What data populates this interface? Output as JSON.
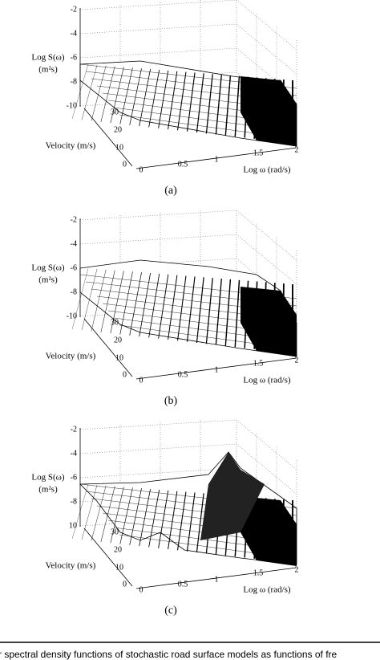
{
  "panels": [
    {
      "label": "(a)",
      "z_label": "Log S(ω)",
      "z_unit": "(m²s)",
      "z_ticks": [
        "-2",
        "-4",
        "-6",
        "-8",
        "-10"
      ],
      "v_label": "Velocity  (m/s)",
      "v_ticks": [
        "30",
        "20",
        "10",
        "0"
      ],
      "x_label": "Log ω (rad/s)",
      "x_ticks": [
        "0",
        "0.5",
        "1",
        "1.5",
        "2"
      ]
    },
    {
      "label": "(b)",
      "z_label": "Log S(ω)",
      "z_unit": "(m²s)",
      "z_ticks": [
        "-2",
        "-4",
        "-6",
        "-8",
        "-10"
      ],
      "v_label": "Velocity  (m/s)",
      "v_ticks": [
        "30",
        "20",
        "10",
        "0"
      ],
      "x_label": "Log ω (rad/s)",
      "x_ticks": [
        "0",
        "0.5",
        "1",
        "1.5",
        "2"
      ]
    },
    {
      "label": "(c)",
      "z_label": "Log S(ω)",
      "z_unit": "(m²s)",
      "z_ticks": [
        "-2",
        "-4",
        "-6",
        "-8",
        "10"
      ],
      "v_label": "Velocity  (m/s)",
      "v_ticks": [
        "30",
        "20",
        "10",
        "0"
      ],
      "x_label": "Log ω (rad/s)",
      "x_ticks": [
        "0",
        "0.5",
        "1",
        "1.5",
        "2"
      ]
    }
  ],
  "caption": "r spectral density functions of stochastic road surface models as functions of fre"
}
